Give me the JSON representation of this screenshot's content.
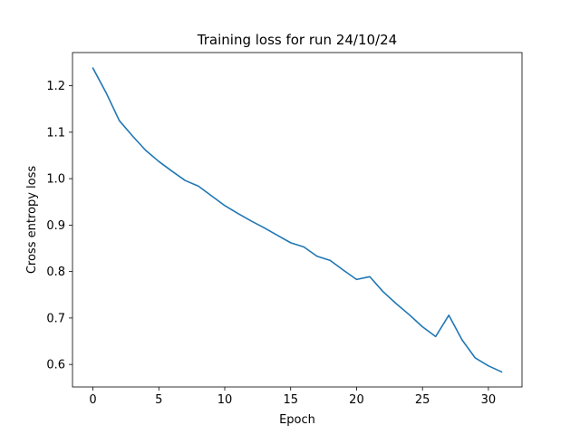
{
  "chart_data": {
    "type": "line",
    "title": "Training loss for run 24/10/24",
    "xlabel": "Epoch",
    "ylabel": "Cross entropy loss",
    "xlim": [
      -1.55,
      32.55
    ],
    "ylim": [
      0.5515,
      1.2715
    ],
    "xticks": [
      0,
      5,
      10,
      15,
      20,
      25,
      30
    ],
    "yticks": [
      0.6,
      0.7,
      0.8,
      0.9,
      1.0,
      1.1,
      1.2
    ],
    "ytick_labels": [
      "0.6",
      "0.7",
      "0.8",
      "0.9",
      "1.0",
      "1.1",
      "1.2"
    ],
    "grid": false,
    "series": [
      {
        "color": "#1f77b4",
        "x": [
          0,
          1,
          2,
          3,
          4,
          5,
          6,
          7,
          8,
          9,
          10,
          11,
          12,
          13,
          14,
          15,
          16,
          17,
          18,
          19,
          20,
          21,
          22,
          23,
          24,
          25,
          26,
          27,
          28,
          29,
          30,
          31
        ],
        "y": [
          1.238,
          1.185,
          1.125,
          1.092,
          1.061,
          1.037,
          1.016,
          0.996,
          0.984,
          0.963,
          0.942,
          0.925,
          0.909,
          0.894,
          0.878,
          0.862,
          0.853,
          0.833,
          0.824,
          0.803,
          0.783,
          0.789,
          0.757,
          0.731,
          0.707,
          0.681,
          0.66,
          0.706,
          0.653,
          0.614,
          0.597,
          0.584
        ]
      }
    ]
  }
}
